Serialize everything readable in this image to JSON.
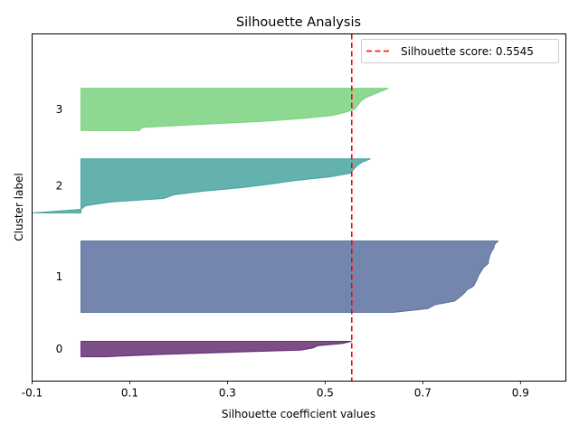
{
  "chart_data": {
    "type": "area",
    "title": "Silhouette Analysis",
    "xlabel": "Silhouette coefficient values",
    "ylabel": "Cluster label",
    "xlim": [
      -0.1,
      0.993
    ],
    "ylim": [
      0,
      194
    ],
    "xticks": [
      -0.1,
      0.1,
      0.3,
      0.5,
      0.7,
      0.9
    ],
    "xtick_labels": [
      "-0.1",
      "0.1",
      "0.3",
      "0.5",
      "0.7",
      "0.9"
    ],
    "yticks": [],
    "grid": false,
    "legend": {
      "position": "top-right",
      "entries": [
        "Silhouette score: 0.5545"
      ]
    },
    "silhouette_score": 0.5545,
    "score_line_color": "#ff0000",
    "clusters": [
      {
        "label": "0",
        "color": "#440154",
        "y_range": [
          13.6,
          22.2
        ],
        "values": [
          0.5545,
          0.535,
          0.485,
          0.475,
          0.45,
          0.3,
          0.16,
          0.05
        ]
      },
      {
        "label": "1",
        "color": "#3b528b",
        "y_range": [
          38.4,
          78.3
        ],
        "values": [
          0.854,
          0.847,
          0.845,
          0.84,
          0.837,
          0.835,
          0.834,
          0.825,
          0.82,
          0.815,
          0.812,
          0.808,
          0.804,
          0.791,
          0.784,
          0.775,
          0.765,
          0.725,
          0.71,
          0.64
        ]
      },
      {
        "label": "2",
        "color": "#21918c",
        "y_range": [
          94.0,
          124.2
        ],
        "values": [
          0.593,
          0.575,
          0.565,
          0.558,
          0.552,
          0.51,
          0.44,
          0.39,
          0.33,
          0.25,
          0.19,
          0.17,
          0.06,
          0.01,
          0.0,
          -0.1
        ]
      },
      {
        "label": "3",
        "color": "#5ec962",
        "y_range": [
          140.0,
          163.6
        ],
        "values": [
          0.63,
          0.615,
          0.6,
          0.585,
          0.575,
          0.57,
          0.565,
          0.56,
          0.54,
          0.515,
          0.455,
          0.37,
          0.24,
          0.125,
          0.12
        ]
      }
    ]
  }
}
